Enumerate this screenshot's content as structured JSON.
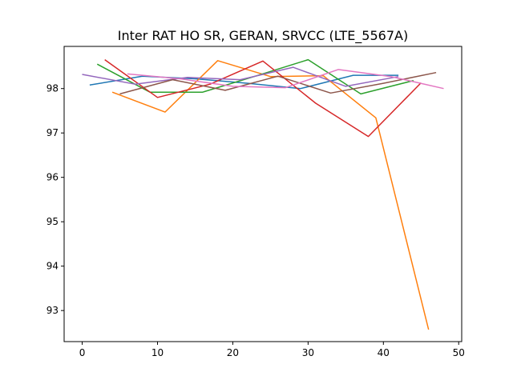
{
  "chart_data": {
    "type": "line",
    "title": "Inter RAT HO SR, GERAN, SRVCC (LTE_5567A)",
    "xlabel": "",
    "ylabel": "",
    "xlim": [
      -2.4,
      50.4
    ],
    "ylim": [
      92.3,
      98.95
    ],
    "x_ticks": [
      0,
      10,
      20,
      30,
      40,
      50
    ],
    "y_ticks": [
      93,
      94,
      95,
      96,
      97,
      98
    ],
    "grid": false,
    "legend": "none",
    "series": [
      {
        "color": "#1f77b4",
        "x": [
          1,
          8,
          15,
          22,
          29,
          36,
          42
        ],
        "y": [
          98.08,
          98.28,
          98.22,
          98.12,
          98.0,
          98.3,
          98.3
        ]
      },
      {
        "color": "#ff7f0e",
        "x": [
          4,
          11,
          18,
          25,
          32,
          39,
          46
        ],
        "y": [
          97.92,
          97.47,
          98.63,
          98.27,
          98.29,
          97.34,
          92.57
        ]
      },
      {
        "color": "#2ca02c",
        "x": [
          2,
          9,
          16,
          23,
          30,
          37,
          44
        ],
        "y": [
          98.55,
          97.92,
          97.92,
          98.28,
          98.65,
          97.88,
          98.18
        ]
      },
      {
        "color": "#d62728",
        "x": [
          3,
          10,
          17,
          24,
          31,
          38,
          45
        ],
        "y": [
          98.65,
          97.8,
          98.1,
          98.62,
          97.67,
          96.92,
          98.13
        ]
      },
      {
        "color": "#9467bd",
        "x": [
          0,
          7,
          14,
          21,
          28,
          35,
          42
        ],
        "y": [
          98.32,
          98.1,
          98.25,
          98.2,
          98.48,
          98.05,
          98.27
        ]
      },
      {
        "color": "#8c564b",
        "x": [
          5,
          12,
          19,
          26,
          33,
          40,
          47
        ],
        "y": [
          97.88,
          98.2,
          97.96,
          98.28,
          97.9,
          98.12,
          98.36
        ]
      },
      {
        "color": "#e377c2",
        "x": [
          6,
          13,
          20,
          27,
          34,
          41,
          48
        ],
        "y": [
          98.33,
          98.22,
          98.05,
          98.02,
          98.43,
          98.27,
          98.0
        ]
      }
    ]
  }
}
